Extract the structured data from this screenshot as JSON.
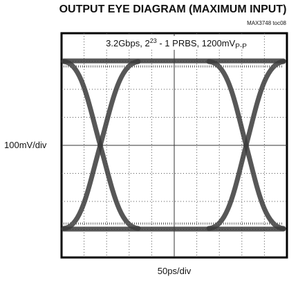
{
  "header": {
    "title": "OUTPUT EYE DIAGRAM (MAXIMUM INPUT)",
    "code": "MAX3748 toc08"
  },
  "plot": {
    "subtitle": {
      "part1": "3.2Gbps, 2",
      "exponent": "23",
      "part2": " - 1 PRBS, 1200mV",
      "subscript": "P-P"
    },
    "y_label": "100mV/div",
    "x_label": "50ps/div"
  }
}
